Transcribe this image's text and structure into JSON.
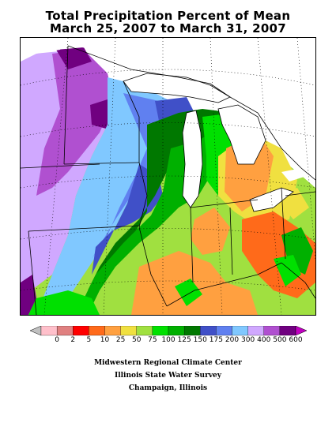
{
  "title": {
    "line1": "Total Precipitation Percent of Mean",
    "line2": "March 25, 2007 to March 31, 2007"
  },
  "legend": {
    "labels": [
      "0",
      "2",
      "5",
      "10",
      "25",
      "50",
      "75",
      "100",
      "125",
      "150",
      "175",
      "200",
      "300",
      "400",
      "500",
      "600"
    ],
    "colors": [
      "#ffc0cb",
      "#e08080",
      "#ff0000",
      "#ff6a1a",
      "#ffa040",
      "#f0e040",
      "#a0e040",
      "#00e000",
      "#00b000",
      "#007800",
      "#4050c8",
      "#6080f0",
      "#80c8ff",
      "#d0a8ff",
      "#b050d0",
      "#700080"
    ],
    "low_arrow_color": "#c0c0c0",
    "high_arrow_color": "#c000c0"
  },
  "credits": {
    "line1": "Midwestern Regional Climate Center",
    "line2": "Illinois State Water Survey",
    "line3": "Champaign, Illinois"
  },
  "map": {
    "region": "Upper Midwest / Great Lakes",
    "land_fill_note": "percent-of-mean contour shading",
    "water_color": "#ffffff",
    "border_color": "#000000",
    "graticule": "dotted"
  }
}
